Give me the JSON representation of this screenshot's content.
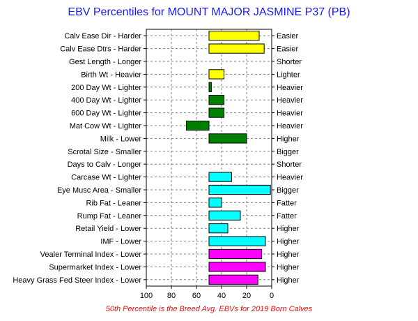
{
  "chart_data": {
    "type": "bar",
    "title": "EBV Percentiles for MOUNT MAJOR JASMINE P37 (PB)",
    "footnote": "50th Percentile is the Breed Avg. EBVs for 2019 Born Calves",
    "xlim": [
      100,
      0
    ],
    "x_ticks": [
      "100",
      "80",
      "60",
      "40",
      "20",
      "0"
    ],
    "grid": true,
    "baseline": 50,
    "traits": [
      {
        "left": "Calv Ease Dir - Harder",
        "right": "Easier",
        "value": 10,
        "color": "#ffff00"
      },
      {
        "left": "Calv Ease Dtrs - Harder",
        "right": "Easier",
        "value": 6,
        "color": "#ffff00"
      },
      {
        "left": "Gest Length - Longer",
        "right": "Shorter",
        "value": null,
        "color": "#ffff00"
      },
      {
        "left": "Birth Wt - Heavier",
        "right": "Lighter",
        "value": 38,
        "color": "#ffff00"
      },
      {
        "left": "200 Day Wt - Lighter",
        "right": "Heavier",
        "value": 48,
        "color": "#008000"
      },
      {
        "left": "400 Day Wt - Lighter",
        "right": "Heavier",
        "value": 38,
        "color": "#008000"
      },
      {
        "left": "600 Day Wt - Lighter",
        "right": "Heavier",
        "value": 38,
        "color": "#008000"
      },
      {
        "left": "Mat Cow Wt - Lighter",
        "right": "Heavier",
        "value": 68,
        "color": "#008000"
      },
      {
        "left": "Milk - Lower",
        "right": "Higher",
        "value": 20,
        "color": "#008000"
      },
      {
        "left": "Scrotal Size - Smaller",
        "right": "Bigger",
        "value": null,
        "color": "#008000"
      },
      {
        "left": "Days to Calv - Longer",
        "right": "Shorter",
        "value": null,
        "color": "#008000"
      },
      {
        "left": "Carcase Wt - Lighter",
        "right": "Heavier",
        "value": 32,
        "color": "#00ffff"
      },
      {
        "left": "Eye Musc Area - Smaller",
        "right": "Bigger",
        "value": 1,
        "color": "#00ffff"
      },
      {
        "left": "Rib Fat - Leaner",
        "right": "Fatter",
        "value": 40,
        "color": "#00ffff"
      },
      {
        "left": "Rump Fat - Leaner",
        "right": "Fatter",
        "value": 25,
        "color": "#00ffff"
      },
      {
        "left": "Retail Yield - Lower",
        "right": "Higher",
        "value": 35,
        "color": "#00ffff"
      },
      {
        "left": "IMF - Lower",
        "right": "Higher",
        "value": 5,
        "color": "#00ffff"
      },
      {
        "left": "Vealer Terminal Index - Lower",
        "right": "Higher",
        "value": 8,
        "color": "#ff00ff"
      },
      {
        "left": "Supermarket Index - Lower",
        "right": "Higher",
        "value": 5,
        "color": "#ff00ff"
      },
      {
        "left": "Heavy Grass Fed Steer Index - Lower",
        "right": "Higher",
        "value": 11,
        "color": "#ff00ff"
      }
    ]
  }
}
